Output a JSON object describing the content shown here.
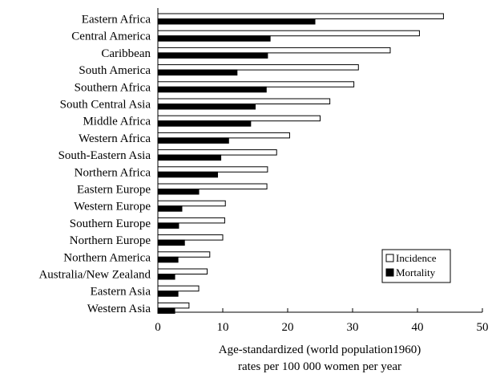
{
  "chart_data": {
    "type": "bar",
    "orientation": "horizontal",
    "categories": [
      "Eastern Africa",
      "Central America",
      "Caribbean",
      "South America",
      "Southern Africa",
      "South Central Asia",
      "Middle Africa",
      "Western Africa",
      "South-Eastern Asia",
      "Northern Africa",
      "Eastern Europe",
      "Western Europe",
      "Southern Europe",
      "Northern Europe",
      "Northern America",
      "Australia/New Zealand",
      "Eastern Asia",
      "Western Asia"
    ],
    "series": [
      {
        "name": "Incidence",
        "color": "#ffffff",
        "values": [
          44.0,
          40.3,
          35.8,
          30.9,
          30.2,
          26.5,
          25.0,
          20.3,
          18.3,
          16.9,
          16.8,
          10.4,
          10.3,
          10.0,
          8.0,
          7.6,
          6.3,
          4.8
        ]
      },
      {
        "name": "Mortality",
        "color": "#000000",
        "values": [
          24.2,
          17.3,
          16.9,
          12.2,
          16.7,
          15.0,
          14.3,
          10.9,
          9.7,
          9.2,
          6.3,
          3.7,
          3.2,
          4.1,
          3.1,
          2.6,
          3.1,
          2.6
        ]
      }
    ],
    "xlim": [
      0,
      50
    ],
    "xticks": [
      "0",
      "10",
      "20",
      "30",
      "40",
      "50"
    ],
    "xlabel_line1": "Age-standardized (world population1960)",
    "xlabel_line2": "rates per 100 000 women per year",
    "legend_position": "lower-right",
    "grid": false
  }
}
